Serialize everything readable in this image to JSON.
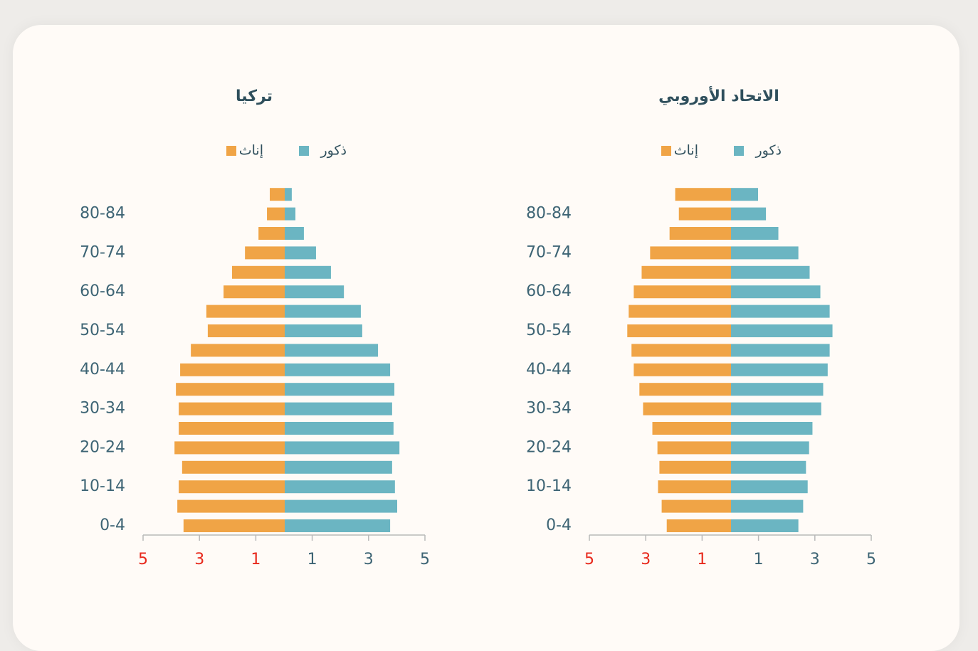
{
  "chart_data": [
    {
      "type": "pyramid",
      "title": "تركيا",
      "categories": [
        "0-4",
        null,
        "10-14",
        null,
        "20-24",
        null,
        "30-34",
        null,
        "40-44",
        null,
        "50-54",
        null,
        "60-64",
        null,
        "70-74",
        null,
        "80-84",
        null
      ],
      "series": [
        {
          "name": "ذكور",
          "color": "#6bb5c2",
          "side": "right",
          "values": [
            3.74,
            3.99,
            3.91,
            3.81,
            4.07,
            3.86,
            3.81,
            3.89,
            3.74,
            3.31,
            2.75,
            2.7,
            2.1,
            1.64,
            1.11,
            0.68,
            0.38,
            0.25
          ]
        },
        {
          "name": "إناث",
          "color": "#f0a446",
          "side": "left",
          "values": [
            3.59,
            3.81,
            3.76,
            3.64,
            3.91,
            3.76,
            3.76,
            3.86,
            3.71,
            3.33,
            2.73,
            2.78,
            2.17,
            1.87,
            1.41,
            0.93,
            0.63,
            0.53
          ]
        }
      ],
      "xlim": [
        -5,
        5
      ],
      "xticks": [
        {
          "value": -5,
          "label": "5"
        },
        {
          "value": -3,
          "label": "3"
        },
        {
          "value": -1,
          "label": "1"
        },
        1,
        3,
        5
      ],
      "negative_tick_color": "#e8291c"
    },
    {
      "type": "pyramid",
      "title": "الاتحاد الأوروبي",
      "categories": [
        "0-4",
        null,
        "10-14",
        null,
        "20-24",
        null,
        "30-34",
        null,
        "40-44",
        null,
        "50-54",
        null,
        "60-64",
        null,
        "70-74",
        null,
        "80-84",
        null
      ],
      "series": [
        {
          "name": "ذكور",
          "color": "#6bb5c2",
          "side": "right",
          "values": [
            2.39,
            2.56,
            2.72,
            2.66,
            2.77,
            2.89,
            3.2,
            3.27,
            3.43,
            3.5,
            3.6,
            3.5,
            3.17,
            2.79,
            2.39,
            1.68,
            1.24,
            0.96
          ]
        },
        {
          "name": "إناث",
          "color": "#f0a446",
          "side": "left",
          "values": [
            2.28,
            2.46,
            2.59,
            2.54,
            2.61,
            2.79,
            3.12,
            3.25,
            3.45,
            3.53,
            3.68,
            3.63,
            3.45,
            3.17,
            2.87,
            2.18,
            1.85,
            1.98
          ]
        }
      ],
      "xlim": [
        -5,
        5
      ],
      "xticks": [
        {
          "value": -5,
          "label": "5"
        },
        {
          "value": -3,
          "label": "3"
        },
        {
          "value": -1,
          "label": "1"
        },
        1,
        3,
        5
      ],
      "negative_tick_color": "#e8291c"
    }
  ]
}
